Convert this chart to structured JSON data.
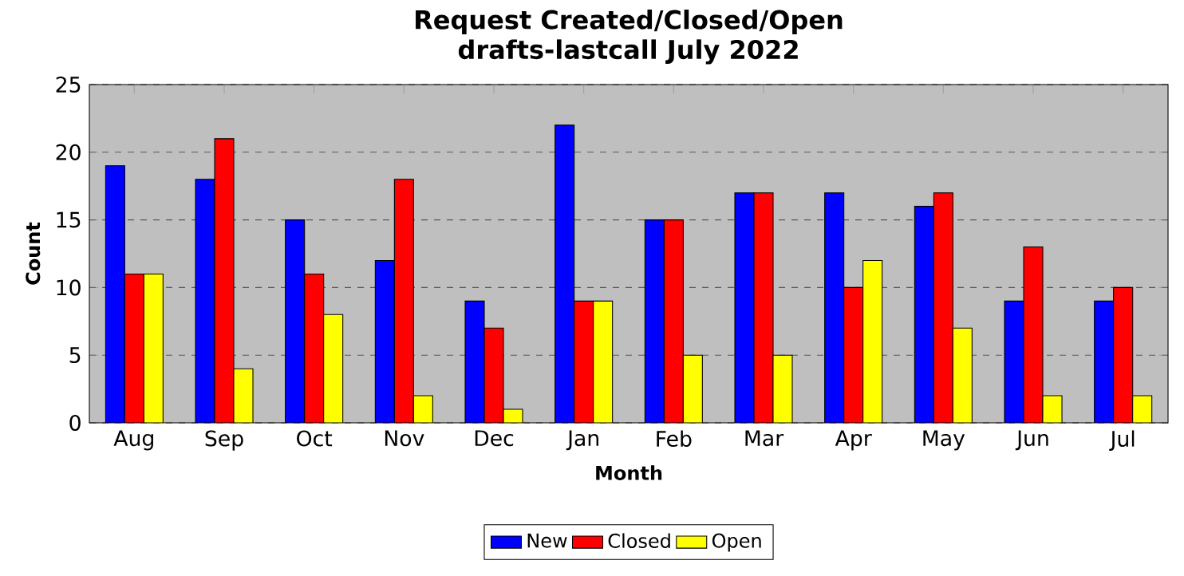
{
  "chart_data": {
    "type": "bar",
    "title": "Request Created/Closed/Open",
    "subtitle": "drafts-lastcall July 2022",
    "xlabel": "Month",
    "ylabel": "Count",
    "categories": [
      "Aug",
      "Sep",
      "Oct",
      "Nov",
      "Dec",
      "Jan",
      "Feb",
      "Mar",
      "Apr",
      "May",
      "Jun",
      "Jul"
    ],
    "series": [
      {
        "name": "New",
        "color": "#0000ff",
        "values": [
          19,
          18,
          15,
          12,
          9,
          22,
          15,
          17,
          17,
          16,
          9,
          9
        ]
      },
      {
        "name": "Closed",
        "color": "#ff0000",
        "values": [
          11,
          21,
          11,
          18,
          7,
          9,
          15,
          17,
          10,
          17,
          13,
          10
        ]
      },
      {
        "name": "Open",
        "color": "#ffff00",
        "values": [
          11,
          4,
          8,
          2,
          1,
          9,
          5,
          5,
          12,
          7,
          2,
          2
        ]
      }
    ],
    "ylim": [
      0,
      25
    ],
    "yticks": [
      0,
      5,
      10,
      15,
      20,
      25
    ],
    "grid": "y",
    "legend": "bottom"
  }
}
